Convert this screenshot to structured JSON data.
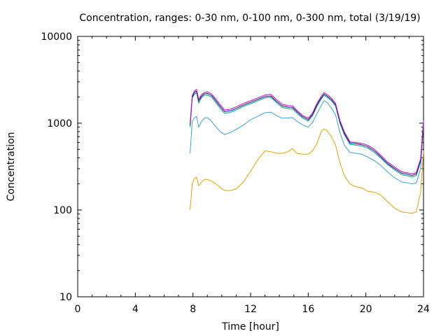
{
  "chart_data": {
    "type": "line",
    "title": "Concentration, ranges: 0-30 nm, 0-100 nm, 0-300 nm, total (3/19/19)",
    "xlabel": "Time [hour]",
    "ylabel": "Concentration",
    "xlim": [
      0,
      24
    ],
    "ylim": [
      10,
      10000
    ],
    "yscale": "log",
    "grid": false,
    "x_ticks": [
      "0",
      "4",
      "8",
      "12",
      "16",
      "20",
      "24"
    ],
    "y_ticks": [
      "10",
      "100",
      "1000",
      "10000"
    ],
    "x": [
      7.8,
      7.95,
      8.1,
      8.25,
      8.4,
      8.6,
      8.8,
      9.0,
      9.3,
      9.6,
      9.9,
      10.2,
      10.6,
      11.0,
      11.5,
      12.0,
      12.5,
      13.0,
      13.4,
      13.8,
      14.2,
      14.6,
      14.9,
      15.2,
      15.6,
      16.0,
      16.3,
      16.6,
      16.9,
      17.1,
      17.3,
      17.6,
      17.9,
      18.2,
      18.5,
      18.9,
      19.3,
      19.7,
      20.1,
      20.6,
      21.0,
      21.5,
      22.0,
      22.5,
      22.9,
      23.2,
      23.5,
      23.8,
      24.0
    ],
    "series": [
      {
        "color": "#e6a000",
        "values": [
          100,
          200,
          230,
          240,
          190,
          210,
          225,
          225,
          215,
          200,
          180,
          168,
          168,
          175,
          210,
          280,
          380,
          480,
          470,
          450,
          450,
          470,
          510,
          450,
          440,
          440,
          480,
          580,
          800,
          860,
          820,
          700,
          560,
          350,
          250,
          200,
          185,
          180,
          165,
          160,
          150,
          125,
          105,
          95,
          93,
          92,
          95,
          160,
          480
        ]
      },
      {
        "color": "#3aa0d8",
        "values": [
          450,
          1050,
          1150,
          1200,
          900,
          1050,
          1150,
          1160,
          1050,
          900,
          800,
          740,
          780,
          850,
          950,
          1100,
          1200,
          1320,
          1340,
          1220,
          1140,
          1150,
          1160,
          1060,
          960,
          900,
          1020,
          1280,
          1600,
          1820,
          1740,
          1500,
          1250,
          780,
          560,
          460,
          450,
          440,
          410,
          370,
          330,
          275,
          235,
          210,
          205,
          200,
          205,
          300,
          1000
        ]
      },
      {
        "color": "#009e73",
        "values": [
          900,
          1950,
          2150,
          2250,
          1700,
          1980,
          2100,
          2110,
          2000,
          1720,
          1480,
          1300,
          1330,
          1420,
          1560,
          1680,
          1810,
          1960,
          1990,
          1720,
          1520,
          1470,
          1470,
          1310,
          1150,
          1060,
          1220,
          1560,
          1900,
          2100,
          2000,
          1820,
          1580,
          1000,
          740,
          570,
          560,
          545,
          520,
          460,
          400,
          335,
          290,
          255,
          248,
          240,
          250,
          360,
          1000
        ]
      },
      {
        "color": "#1a1a8c",
        "values": [
          950,
          2000,
          2250,
          2350,
          1800,
          2050,
          2180,
          2200,
          2080,
          1800,
          1550,
          1360,
          1390,
          1480,
          1620,
          1740,
          1880,
          2030,
          2060,
          1780,
          1580,
          1530,
          1530,
          1360,
          1190,
          1100,
          1260,
          1620,
          1960,
          2160,
          2060,
          1880,
          1630,
          1040,
          770,
          590,
          580,
          565,
          540,
          480,
          415,
          345,
          300,
          265,
          258,
          250,
          260,
          375,
          1040
        ]
      },
      {
        "color": "#cc00cc",
        "values": [
          990,
          2080,
          2330,
          2450,
          1880,
          2130,
          2260,
          2300,
          2170,
          1880,
          1620,
          1420,
          1450,
          1540,
          1690,
          1810,
          1960,
          2110,
          2150,
          1860,
          1650,
          1590,
          1590,
          1410,
          1230,
          1140,
          1310,
          1690,
          2040,
          2250,
          2140,
          1950,
          1690,
          1080,
          800,
          610,
          600,
          585,
          560,
          500,
          430,
          358,
          312,
          275,
          268,
          260,
          270,
          390,
          1080
        ]
      }
    ]
  }
}
